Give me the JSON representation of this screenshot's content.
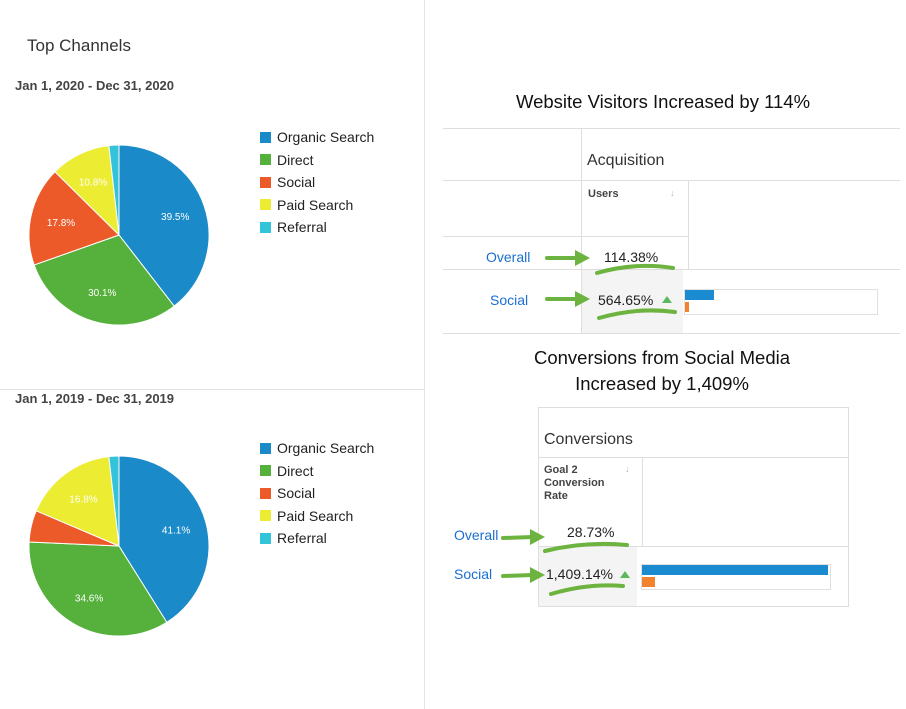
{
  "left": {
    "title": "Top Channels",
    "charts": [
      {
        "date_range": "Jan 1, 2020 - Dec 31, 2020",
        "legend": [
          "Organic Search",
          "Direct",
          "Social",
          "Paid Search",
          "Referral"
        ]
      },
      {
        "date_range": "Jan 1, 2019 - Dec 31, 2019",
        "legend": [
          "Organic Search",
          "Direct",
          "Social",
          "Paid Search",
          "Referral"
        ]
      }
    ]
  },
  "colors": {
    "organic_search": "#1b8ac9",
    "direct": "#55b13b",
    "social": "#ec5a2a",
    "paid_search": "#ecec33",
    "referral": "#33c4d9",
    "link": "#1a6fd1",
    "arrow": "#6cb33f"
  },
  "chart_data": [
    {
      "type": "pie",
      "date_range": "Jan 1, 2020 - Dec 31, 2020",
      "categories": [
        "Organic Search",
        "Direct",
        "Social",
        "Paid Search",
        "Referral"
      ],
      "values": [
        39.5,
        30.1,
        17.8,
        10.8,
        1.8
      ],
      "labels": [
        "39.5%",
        "30.1%",
        "17.8%",
        "10.8%",
        ""
      ],
      "colors": [
        "#1b8ac9",
        "#55b13b",
        "#ec5a2a",
        "#ecec33",
        "#33c4d9"
      ],
      "legend": "right"
    },
    {
      "type": "pie",
      "date_range": "Jan 1, 2019 - Dec 31, 2019",
      "categories": [
        "Organic Search",
        "Direct",
        "Social",
        "Paid Search",
        "Referral"
      ],
      "values": [
        41.1,
        34.6,
        5.7,
        16.8,
        1.8
      ],
      "labels": [
        "41.1%",
        "34.6%",
        "",
        "16.8%",
        ""
      ],
      "colors": [
        "#1b8ac9",
        "#55b13b",
        "#ec5a2a",
        "#ecec33",
        "#33c4d9"
      ],
      "legend": "right"
    }
  ],
  "visitors": {
    "heading": "Website Visitors Increased by 114%",
    "section_title": "Acquisition",
    "column": "Users",
    "rows": [
      {
        "label": "Overall",
        "value": "114.38%"
      },
      {
        "label": "Social",
        "value": "564.65%"
      }
    ],
    "bar": {
      "current": 0.15,
      "previous": 0.02
    }
  },
  "conversions": {
    "heading_line1": "Conversions from Social Media",
    "heading_line2": "Increased by 1,409%",
    "section_title": "Conversions",
    "column_lines": [
      "Goal 2",
      "Conversion",
      "Rate"
    ],
    "rows": [
      {
        "label": "Overall",
        "value": "28.73%"
      },
      {
        "label": "Social",
        "value": "1,409.14%"
      }
    ],
    "bar": {
      "current": 1.0,
      "previous": 0.07
    }
  }
}
